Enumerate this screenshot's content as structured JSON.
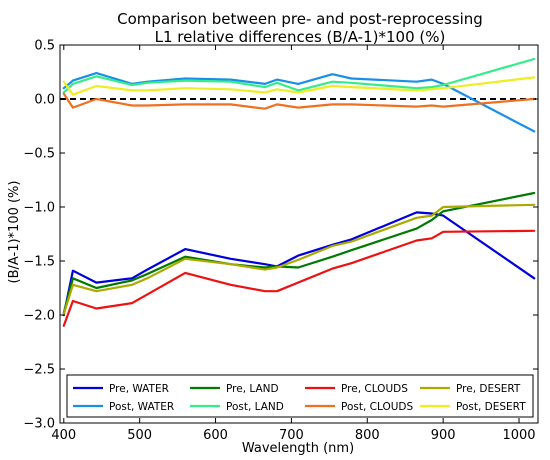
{
  "chart_data": {
    "type": "line",
    "title": [
      "Comparison between pre- and post-reprocessing",
      "L1 relative differences (B/A-1)*100 (%)"
    ],
    "xlabel": "Wavelength (nm)",
    "ylabel": "(B/A-1)*100 (%)",
    "xlim": [
      395,
      1025
    ],
    "ylim": [
      -3.0,
      0.5
    ],
    "xticks": [
      400,
      500,
      600,
      700,
      800,
      900,
      1000
    ],
    "yticks": [
      0.5,
      0.0,
      -0.5,
      -1.0,
      -1.5,
      -2.0,
      -2.5,
      -3.0
    ],
    "ytick_labels": [
      "0.5",
      "0.0",
      "−0.5",
      "−1.0",
      "−1.5",
      "−2.0",
      "−2.5",
      "−3.0"
    ],
    "grid": false,
    "legend_position": "bottom",
    "reference_line": {
      "y": 0.0,
      "style": "dashed",
      "color": "#000000"
    },
    "series": [
      {
        "name": "Pre,  WATER",
        "color": "#0000dd",
        "x": [
          400,
          412,
          443,
          490,
          510,
          560,
          620,
          665,
          681,
          709,
          754,
          779,
          865,
          885,
          900,
          1020
        ],
        "y": [
          -2.0,
          -1.59,
          -1.7,
          -1.66,
          -1.58,
          -1.39,
          -1.48,
          -1.53,
          -1.55,
          -1.45,
          -1.35,
          -1.3,
          -1.05,
          -1.06,
          -1.08,
          -1.66
        ]
      },
      {
        "name": "Post, WATER",
        "color": "#1a8fe8",
        "x": [
          400,
          412,
          443,
          490,
          510,
          560,
          620,
          665,
          681,
          709,
          754,
          779,
          865,
          885,
          900,
          1020
        ],
        "y": [
          0.1,
          0.17,
          0.24,
          0.14,
          0.16,
          0.19,
          0.18,
          0.14,
          0.18,
          0.14,
          0.23,
          0.19,
          0.16,
          0.18,
          0.14,
          -0.3
        ]
      },
      {
        "name": "Pre,  LAND",
        "color": "#007a00",
        "x": [
          400,
          412,
          443,
          490,
          510,
          560,
          620,
          665,
          681,
          709,
          754,
          779,
          865,
          885,
          900,
          1020
        ],
        "y": [
          -1.98,
          -1.66,
          -1.75,
          -1.68,
          -1.62,
          -1.46,
          -1.53,
          -1.56,
          -1.55,
          -1.56,
          -1.46,
          -1.4,
          -1.2,
          -1.12,
          -1.04,
          -0.87
        ]
      },
      {
        "name": "Post, LAND",
        "color": "#33ee88",
        "x": [
          400,
          412,
          443,
          490,
          510,
          560,
          620,
          665,
          681,
          709,
          754,
          779,
          865,
          885,
          900,
          1020
        ],
        "y": [
          0.06,
          0.14,
          0.21,
          0.13,
          0.15,
          0.17,
          0.16,
          0.11,
          0.15,
          0.08,
          0.16,
          0.15,
          0.1,
          0.11,
          0.13,
          0.37
        ]
      },
      {
        "name": "Pre,  CLOUDS",
        "color": "#ee1111",
        "x": [
          400,
          412,
          443,
          490,
          560,
          620,
          665,
          681,
          754,
          779,
          865,
          885,
          900,
          1020
        ],
        "y": [
          -2.1,
          -1.87,
          -1.94,
          -1.89,
          -1.61,
          -1.72,
          -1.78,
          -1.78,
          -1.57,
          -1.52,
          -1.31,
          -1.29,
          -1.23,
          -1.22
        ]
      },
      {
        "name": "Post, CLOUDS",
        "color": "#f07020",
        "x": [
          400,
          412,
          443,
          490,
          510,
          560,
          620,
          665,
          681,
          709,
          754,
          779,
          865,
          885,
          900,
          1020
        ],
        "y": [
          0.05,
          -0.08,
          0.0,
          -0.06,
          -0.06,
          -0.05,
          -0.05,
          -0.09,
          -0.05,
          -0.08,
          -0.05,
          -0.05,
          -0.07,
          -0.06,
          -0.07,
          0.0
        ]
      },
      {
        "name": "Pre, DESERT",
        "color": "#aaaa00",
        "x": [
          400,
          412,
          443,
          490,
          510,
          560,
          620,
          665,
          681,
          709,
          754,
          779,
          865,
          885,
          900,
          1020
        ],
        "y": [
          -1.99,
          -1.72,
          -1.78,
          -1.72,
          -1.66,
          -1.48,
          -1.53,
          -1.58,
          -1.56,
          -1.49,
          -1.36,
          -1.32,
          -1.1,
          -1.08,
          -1.0,
          -0.98
        ]
      },
      {
        "name": "Post, DESERT",
        "color": "#eeee22",
        "x": [
          400,
          412,
          443,
          490,
          510,
          560,
          620,
          665,
          681,
          709,
          754,
          779,
          865,
          885,
          900,
          1020
        ],
        "y": [
          0.16,
          0.04,
          0.12,
          0.08,
          0.08,
          0.1,
          0.09,
          0.06,
          0.09,
          0.06,
          0.12,
          0.11,
          0.08,
          0.09,
          0.1,
          0.2
        ]
      }
    ]
  }
}
